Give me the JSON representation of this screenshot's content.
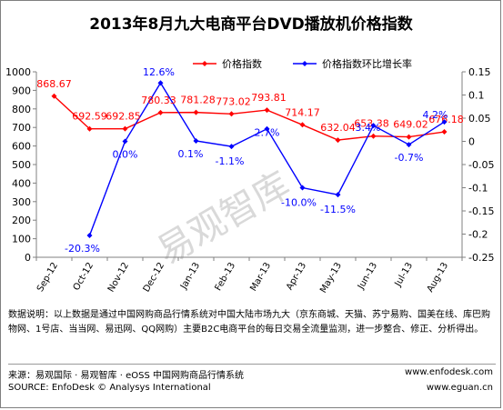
{
  "chart_data": {
    "type": "line",
    "title": "2013年8月九大电商平台DVD播放机价格指数",
    "categories": [
      "Sep-12",
      "Oct-12",
      "Nov-12",
      "Dec-12",
      "Jan-13",
      "Feb-13",
      "Mar-13",
      "Apr-13",
      "May-13",
      "Jun-13",
      "Jul-13",
      "Aug-13"
    ],
    "series": [
      {
        "name": "价格指数",
        "axis": "left",
        "color": "#ff0000",
        "values": [
          868.67,
          692.59,
          692.85,
          780.33,
          781.28,
          773.02,
          793.81,
          714.17,
          632.04,
          653.38,
          649.02,
          676.18
        ],
        "labels": [
          "868.67",
          "692.59",
          "692.85",
          "780.33",
          "781.28",
          "773.02",
          "793.81",
          "714.17",
          "632.04",
          "653.38",
          "649.02",
          "676.18"
        ]
      },
      {
        "name": "价格指数环比增长率",
        "axis": "right",
        "color": "#0000ff",
        "values": [
          null,
          -0.203,
          0.0,
          0.126,
          0.001,
          -0.011,
          0.027,
          -0.1,
          -0.115,
          0.034,
          -0.007,
          0.042
        ],
        "labels": [
          "",
          "-20.3%",
          "0.0%",
          "12.6%",
          "0.1%",
          "-1.1%",
          "2.7%",
          "-10.0%",
          "-11.5%",
          "3.4%",
          "-0.7%",
          "4.2%"
        ]
      }
    ],
    "ylim_left": [
      0,
      1000
    ],
    "yticks_left": [
      "0",
      "100",
      "200",
      "300",
      "400",
      "500",
      "600",
      "700",
      "800",
      "900",
      "1000"
    ],
    "ylim_right": [
      -0.25,
      0.15
    ],
    "yticks_right": [
      "-0.25",
      "-0.2",
      "-0.15",
      "-0.1",
      "-0.05",
      "0",
      "0.05",
      "0.1",
      "0.15"
    ],
    "legend_position": "top",
    "grid": false
  },
  "watermark": "易观智库",
  "note": "数据说明：以上数据是通过中国网购商品行情系统对中国大陆市场九大（京东商城、天猫、苏宁易购、国美在线、库巴购物网、1号店、当当网、易迅网、QQ网购）主要B2C电商平台的每日交易全流量监测，进一步整合、修正、分析得出。",
  "source_cn": "来源：易观国际 · 易观智库 · eOSS 中国网购商品行情系统",
  "source_en": "SOURCE:  EnfoDesk © Analysys International",
  "site1": "www.enfodesk.com",
  "site2": "www.eguan.cn"
}
